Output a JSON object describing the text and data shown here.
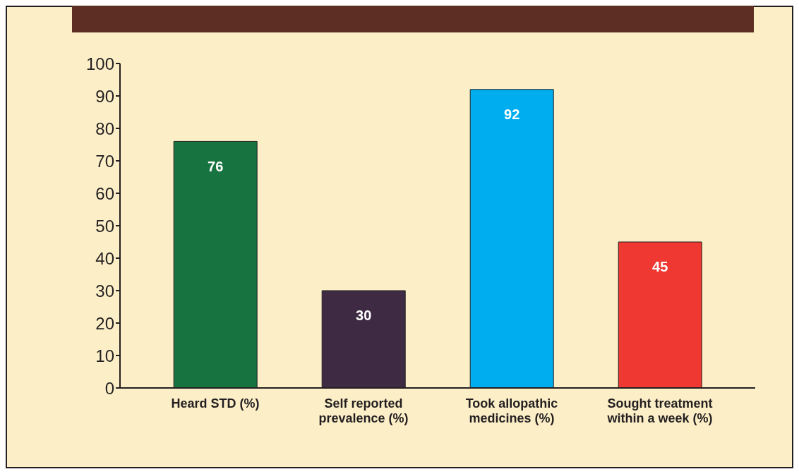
{
  "chart_data": {
    "type": "bar",
    "categories": [
      "Heard STD (%)",
      "Self reported prevalence (%)",
      "Took allopathic medicines (%)",
      "Sought treatment within a week (%)"
    ],
    "values": [
      76,
      30,
      92,
      45
    ],
    "colors": [
      "#177340",
      "#3e2a43",
      "#00adef",
      "#ee3831"
    ],
    "ylim": [
      0,
      100
    ],
    "yticks": [
      0,
      10,
      20,
      30,
      40,
      50,
      60,
      70,
      80,
      90,
      100
    ],
    "grid": false,
    "data_labels": true
  }
}
